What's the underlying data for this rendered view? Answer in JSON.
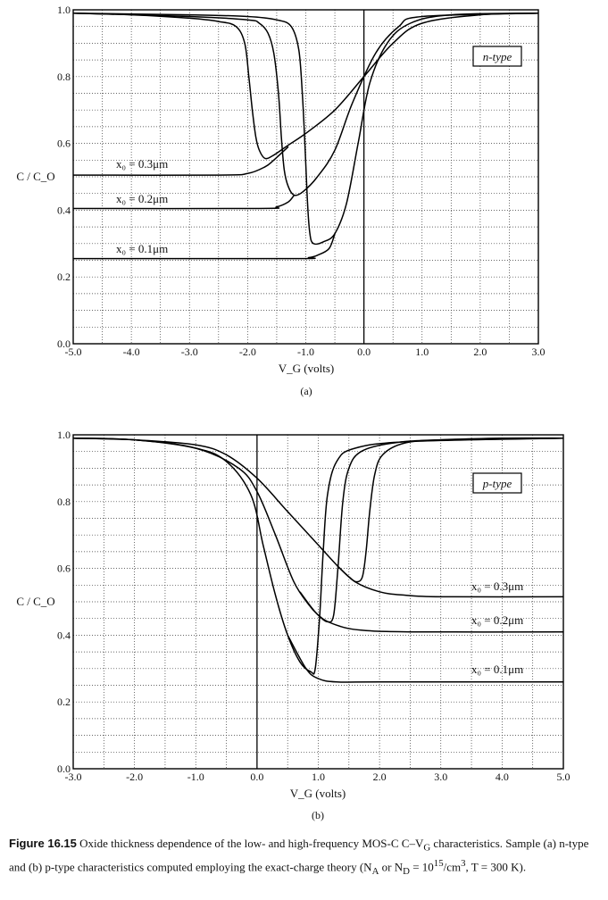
{
  "charts": [
    {
      "id": "a",
      "type": "line",
      "xlabel": "V_G (volts)",
      "ylabel": "C / C_O",
      "sublabel": "(a)",
      "legend_box": "n-type",
      "xlim": [
        -5,
        3
      ],
      "ylim": [
        0,
        1
      ],
      "xticks": [
        "-5.0",
        "-4.0",
        "-3.0",
        "-2.0",
        "-1.0",
        "0.0",
        "1.0",
        "2.0",
        "3.0"
      ],
      "yticks": [
        "0.0",
        "0.2",
        "0.4",
        "0.6",
        "0.8",
        "1.0"
      ],
      "grid": "dotted",
      "series": [
        {
          "name": "x0 = 0.3μm",
          "lf": [
            [
              -5,
              0.99
            ],
            [
              -4,
              0.985
            ],
            [
              -3,
              0.975
            ],
            [
              -2.5,
              0.965
            ],
            [
              -2.2,
              0.95
            ],
            [
              -2.05,
              0.9
            ],
            [
              -1.98,
              0.8
            ],
            [
              -1.92,
              0.7
            ],
            [
              -1.86,
              0.62
            ],
            [
              -1.8,
              0.58
            ],
            [
              -1.7,
              0.555
            ],
            [
              -1.55,
              0.565
            ],
            [
              -1.3,
              0.595
            ],
            [
              -1,
              0.63
            ],
            [
              -0.5,
              0.7
            ],
            [
              0,
              0.8
            ],
            [
              0.5,
              0.9
            ],
            [
              1,
              0.96
            ],
            [
              2,
              0.985
            ],
            [
              3,
              0.99
            ]
          ],
          "hf": [
            [
              -5,
              0.505
            ],
            [
              -2.5,
              0.505
            ],
            [
              -2,
              0.51
            ],
            [
              -1.7,
              0.53
            ],
            [
              -1.55,
              0.55
            ],
            [
              -1.3,
              0.59
            ]
          ]
        },
        {
          "name": "x0 = 0.2μm",
          "lf": [
            [
              -5,
              0.99
            ],
            [
              -3,
              0.98
            ],
            [
              -2,
              0.97
            ],
            [
              -1.8,
              0.96
            ],
            [
              -1.65,
              0.93
            ],
            [
              -1.55,
              0.87
            ],
            [
              -1.47,
              0.75
            ],
            [
              -1.42,
              0.62
            ],
            [
              -1.37,
              0.52
            ],
            [
              -1.3,
              0.47
            ],
            [
              -1.2,
              0.445
            ],
            [
              -1.05,
              0.455
            ],
            [
              -0.8,
              0.5
            ],
            [
              -0.5,
              0.58
            ],
            [
              -0.2,
              0.72
            ],
            [
              0.2,
              0.87
            ],
            [
              0.6,
              0.95
            ],
            [
              1,
              0.98
            ],
            [
              3,
              0.99
            ]
          ],
          "hf": [
            [
              -5,
              0.405
            ],
            [
              -1.8,
              0.405
            ],
            [
              -1.5,
              0.41
            ],
            [
              -1.3,
              0.425
            ],
            [
              -1.2,
              0.445
            ]
          ]
        },
        {
          "name": "x0 = 0.1μm",
          "lf": [
            [
              -5,
              0.99
            ],
            [
              -3,
              0.985
            ],
            [
              -2,
              0.98
            ],
            [
              -1.5,
              0.97
            ],
            [
              -1.25,
              0.95
            ],
            [
              -1.12,
              0.88
            ],
            [
              -1.06,
              0.75
            ],
            [
              -1.01,
              0.58
            ],
            [
              -0.97,
              0.42
            ],
            [
              -0.93,
              0.33
            ],
            [
              -0.87,
              0.3
            ],
            [
              -0.7,
              0.305
            ],
            [
              -0.5,
              0.33
            ],
            [
              -0.3,
              0.42
            ],
            [
              -0.1,
              0.6
            ],
            [
              0.1,
              0.78
            ],
            [
              0.4,
              0.9
            ],
            [
              0.8,
              0.96
            ],
            [
              1.5,
              0.985
            ],
            [
              3,
              0.99
            ]
          ],
          "hf": [
            [
              -5,
              0.255
            ],
            [
              -1.2,
              0.255
            ],
            [
              -0.95,
              0.258
            ],
            [
              -0.8,
              0.265
            ],
            [
              -0.6,
              0.285
            ],
            [
              -0.5,
              0.33
            ]
          ]
        }
      ]
    },
    {
      "id": "b",
      "type": "line",
      "xlabel": "V_G (volts)",
      "ylabel": "C / C_O",
      "sublabel": "(b)",
      "legend_box": "p-type",
      "xlim": [
        -3,
        5
      ],
      "ylim": [
        0,
        1
      ],
      "xticks": [
        "-3.0",
        "-2.0",
        "-1.0",
        "0.0",
        "1.0",
        "2.0",
        "3.0",
        "4.0",
        "5.0"
      ],
      "yticks": [
        "0.0",
        "0.2",
        "0.4",
        "0.6",
        "0.8",
        "1.0"
      ],
      "grid": "dotted",
      "series": [
        {
          "name": "x0 = 0.3μm",
          "lf": [
            [
              -3,
              0.99
            ],
            [
              -2,
              0.985
            ],
            [
              -1,
              0.97
            ],
            [
              -0.5,
              0.94
            ],
            [
              0,
              0.87
            ],
            [
              0.5,
              0.77
            ],
            [
              1,
              0.67
            ],
            [
              1.3,
              0.61
            ],
            [
              1.5,
              0.575
            ],
            [
              1.62,
              0.56
            ],
            [
              1.72,
              0.575
            ],
            [
              1.78,
              0.65
            ],
            [
              1.84,
              0.77
            ],
            [
              1.92,
              0.88
            ],
            [
              2.05,
              0.94
            ],
            [
              2.4,
              0.975
            ],
            [
              3,
              0.985
            ],
            [
              4,
              0.99
            ],
            [
              5,
              0.99
            ]
          ],
          "hf": [
            [
              1.3,
              0.61
            ],
            [
              1.6,
              0.56
            ],
            [
              2,
              0.53
            ],
            [
              2.4,
              0.52
            ],
            [
              3,
              0.515
            ],
            [
              5,
              0.515
            ]
          ]
        },
        {
          "name": "x0 = 0.2μm",
          "lf": [
            [
              -3,
              0.99
            ],
            [
              -2,
              0.985
            ],
            [
              -1,
              0.96
            ],
            [
              -0.3,
              0.9
            ],
            [
              0,
              0.83
            ],
            [
              0.3,
              0.7
            ],
            [
              0.6,
              0.56
            ],
            [
              0.85,
              0.49
            ],
            [
              1,
              0.46
            ],
            [
              1.15,
              0.44
            ],
            [
              1.25,
              0.46
            ],
            [
              1.32,
              0.6
            ],
            [
              1.4,
              0.8
            ],
            [
              1.5,
              0.9
            ],
            [
              1.7,
              0.95
            ],
            [
              2.2,
              0.975
            ],
            [
              3,
              0.985
            ],
            [
              5,
              0.99
            ]
          ],
          "hf": [
            [
              0.7,
              0.53
            ],
            [
              1,
              0.46
            ],
            [
              1.3,
              0.43
            ],
            [
              1.7,
              0.415
            ],
            [
              2.5,
              0.41
            ],
            [
              5,
              0.41
            ]
          ]
        },
        {
          "name": "x0 = 0.1μm",
          "lf": [
            [
              -3,
              0.99
            ],
            [
              -2,
              0.985
            ],
            [
              -1,
              0.96
            ],
            [
              -0.5,
              0.92
            ],
            [
              -0.1,
              0.82
            ],
            [
              0.1,
              0.67
            ],
            [
              0.3,
              0.52
            ],
            [
              0.5,
              0.4
            ],
            [
              0.7,
              0.32
            ],
            [
              0.88,
              0.29
            ],
            [
              0.95,
              0.3
            ],
            [
              1.02,
              0.45
            ],
            [
              1.08,
              0.65
            ],
            [
              1.15,
              0.82
            ],
            [
              1.3,
              0.92
            ],
            [
              1.6,
              0.96
            ],
            [
              2.5,
              0.98
            ],
            [
              5,
              0.99
            ]
          ],
          "hf": [
            [
              0.5,
              0.4
            ],
            [
              0.8,
              0.3
            ],
            [
              1,
              0.27
            ],
            [
              1.3,
              0.26
            ],
            [
              2,
              0.26
            ],
            [
              5,
              0.26
            ]
          ]
        }
      ]
    }
  ],
  "labels_a": {
    "l1": "x₀ = 0.3μm",
    "l2": "x₀ = 0.2μm",
    "l3": "x₀ = 0.1μm"
  },
  "labels_b": {
    "l1": "x₀ = 0.3μm",
    "l2": "x₀ = 0.2μm",
    "l3": "x₀ = 0.1μm"
  },
  "caption": {
    "figure": "Figure 16.15",
    "text": "  Oxide thickness dependence of the low- and high-frequency MOS-C C–V",
    "sub": "G",
    "text2": " characteristics. Sample (a) n-type and (b) p-type characteristics computed employing the exact-charge theory (N",
    "subA": "A",
    "text3": " or N",
    "subD": "D",
    "text4": " = 10",
    "sup": "15",
    "text5": "/cm",
    "sup3": "3",
    "text6": ", T = 300 K)."
  }
}
